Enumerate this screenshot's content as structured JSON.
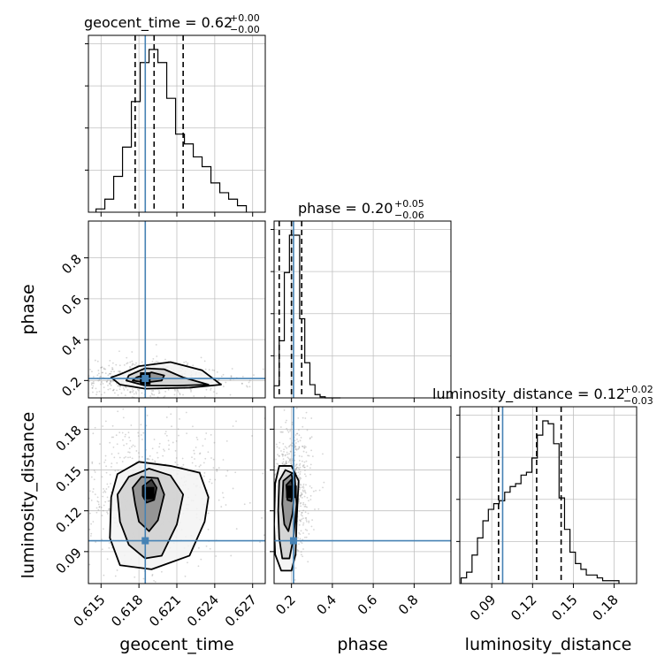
{
  "colors": {
    "truth": "#4682b4",
    "hist": "#000000",
    "grid": "#c0c0c0",
    "quantile": "#000000"
  },
  "chart_data": {
    "type": "corner",
    "parameters": [
      "geocent_time",
      "phase",
      "luminosity_distance"
    ],
    "truths": {
      "geocent_time": 0.6185,
      "phase": 0.21,
      "luminosity_distance": 0.098
    },
    "ranges": {
      "geocent_time": [
        0.614,
        0.628
      ],
      "phase": [
        0.115,
        0.98
      ],
      "luminosity_distance": [
        0.0665,
        0.1965
      ]
    },
    "ticks": {
      "geocent_time": {
        "values": [
          0.615,
          0.618,
          0.621,
          0.624,
          0.627
        ],
        "labels": [
          "0.615",
          "0.618",
          "0.621",
          "0.624",
          "0.627"
        ]
      },
      "phase": {
        "values": [
          0.2,
          0.4,
          0.6,
          0.8
        ],
        "labels": [
          "0.2",
          "0.4",
          "0.6",
          "0.8"
        ]
      },
      "luminosity_distance": {
        "values": [
          0.09,
          0.12,
          0.15,
          0.18
        ],
        "labels": [
          "0.09",
          "0.12",
          "0.15",
          "0.18"
        ]
      }
    },
    "titles": [
      {
        "param": "geocent_time",
        "text": "geocent_time = 0.62",
        "sup": "+0.00",
        "sub": "−0.00"
      },
      {
        "param": "phase",
        "text": "phase = 0.20",
        "sup": "+0.05",
        "sub": "−0.06"
      },
      {
        "param": "luminosity_distance",
        "text": "luminosity_distance = 0.12",
        "sup": "+0.02",
        "sub": "−0.03"
      }
    ],
    "axis_labels": {
      "x": [
        "geocent_time",
        "phase",
        "luminosity_distance"
      ],
      "y": [
        "phase",
        "luminosity_distance"
      ]
    },
    "quantiles": {
      "geocent_time": [
        0.6177,
        0.6192,
        0.6215
      ],
      "phase": [
        0.14,
        0.2,
        0.25
      ],
      "luminosity_distance": [
        0.095,
        0.123,
        0.141
      ]
    },
    "histograms": {
      "geocent_time": {
        "edges": [
          0.6146,
          0.6153,
          0.616,
          0.6167,
          0.6174,
          0.6181,
          0.6188,
          0.6195,
          0.6202,
          0.6209,
          0.6216,
          0.6223,
          0.623,
          0.6237,
          0.6244,
          0.6251,
          0.6258,
          0.6265
        ],
        "counts": [
          1,
          4,
          11,
          20,
          34,
          46,
          50,
          46,
          35,
          24,
          21,
          17,
          14,
          9,
          6,
          4,
          2
        ]
      },
      "phase": {
        "edges": [
          0.115,
          0.14,
          0.165,
          0.19,
          0.215,
          0.24,
          0.265,
          0.29,
          0.315,
          0.34,
          0.365,
          0.39,
          0.415,
          0.44
        ],
        "counts": [
          11,
          52,
          114,
          148,
          148,
          72,
          32,
          12,
          3,
          1,
          0,
          0,
          0
        ]
      },
      "luminosity_distance": {
        "edges": [
          0.0675,
          0.0715,
          0.0755,
          0.0795,
          0.0835,
          0.0875,
          0.0915,
          0.0955,
          0.0995,
          0.1035,
          0.1075,
          0.1115,
          0.1155,
          0.1195,
          0.1235,
          0.1275,
          0.1315,
          0.1355,
          0.1395,
          0.1435,
          0.1475,
          0.1515,
          0.1555,
          0.1595,
          0.1635,
          0.1675,
          0.1715,
          0.1755,
          0.1795,
          0.1835
        ],
        "counts": [
          2,
          4,
          10,
          16,
          22,
          26,
          28,
          29,
          32,
          34,
          35,
          38,
          39,
          44,
          52,
          57,
          56,
          49,
          30,
          19,
          11,
          7,
          5,
          3,
          3,
          2,
          1,
          1,
          1
        ]
      }
    },
    "pairs": [
      {
        "x": "geocent_time",
        "y": "phase",
        "peak": [
          0.6185,
          0.21
        ],
        "contours": [
          [
            [
              0.6165,
              0.23
            ],
            [
              0.618,
              0.27
            ],
            [
              0.6205,
              0.29
            ],
            [
              0.623,
              0.25
            ],
            [
              0.6245,
              0.18
            ],
            [
              0.622,
              0.165
            ],
            [
              0.6185,
              0.16
            ],
            [
              0.6165,
              0.18
            ],
            [
              0.6158,
              0.215
            ]
          ],
          [
            [
              0.6172,
              0.225
            ],
            [
              0.6185,
              0.26
            ],
            [
              0.62,
              0.255
            ],
            [
              0.6215,
              0.215
            ],
            [
              0.6235,
              0.18
            ],
            [
              0.621,
              0.175
            ],
            [
              0.6185,
              0.175
            ],
            [
              0.617,
              0.2
            ]
          ],
          [
            [
              0.6178,
              0.215
            ],
            [
              0.619,
              0.24
            ],
            [
              0.62,
              0.225
            ],
            [
              0.6198,
              0.2
            ],
            [
              0.6185,
              0.19
            ],
            [
              0.6175,
              0.2
            ]
          ]
        ]
      },
      {
        "x": "geocent_time",
        "y": "luminosity_distance",
        "peak": [
          0.6188,
          0.133
        ],
        "contours": [
          [
            [
              0.6158,
              0.13
            ],
            [
              0.6163,
              0.147
            ],
            [
              0.618,
              0.156
            ],
            [
              0.6205,
              0.153
            ],
            [
              0.6228,
              0.148
            ],
            [
              0.6235,
              0.13
            ],
            [
              0.6232,
              0.112
            ],
            [
              0.622,
              0.087
            ],
            [
              0.619,
              0.077
            ],
            [
              0.6165,
              0.08
            ],
            [
              0.6157,
              0.1
            ]
          ],
          [
            [
              0.6163,
              0.132
            ],
            [
              0.6172,
              0.145
            ],
            [
              0.6188,
              0.151
            ],
            [
              0.6205,
              0.146
            ],
            [
              0.6215,
              0.132
            ],
            [
              0.621,
              0.11
            ],
            [
              0.6198,
              0.087
            ],
            [
              0.6185,
              0.085
            ],
            [
              0.6172,
              0.095
            ],
            [
              0.6165,
              0.112
            ]
          ],
          [
            [
              0.6175,
              0.137
            ],
            [
              0.6182,
              0.145
            ],
            [
              0.6195,
              0.144
            ],
            [
              0.62,
              0.132
            ],
            [
              0.6195,
              0.113
            ],
            [
              0.6188,
              0.105
            ],
            [
              0.618,
              0.112
            ],
            [
              0.6177,
              0.125
            ]
          ],
          [
            [
              0.6183,
              0.138
            ],
            [
              0.619,
              0.143
            ],
            [
              0.6194,
              0.137
            ],
            [
              0.6192,
              0.128
            ],
            [
              0.6186,
              0.126
            ],
            [
              0.6183,
              0.131
            ]
          ]
        ]
      },
      {
        "x": "phase",
        "y": "luminosity_distance",
        "peak": [
          0.2,
          0.134
        ],
        "contours": [
          [
            [
              0.12,
              0.14
            ],
            [
              0.14,
              0.153
            ],
            [
              0.2,
              0.153
            ],
            [
              0.235,
              0.142
            ],
            [
              0.225,
              0.112
            ],
            [
              0.22,
              0.088
            ],
            [
              0.2,
              0.076
            ],
            [
              0.15,
              0.076
            ],
            [
              0.12,
              0.088
            ],
            [
              0.115,
              0.11
            ]
          ],
          [
            [
              0.14,
              0.142
            ],
            [
              0.17,
              0.15
            ],
            [
              0.215,
              0.147
            ],
            [
              0.225,
              0.125
            ],
            [
              0.21,
              0.1
            ],
            [
              0.19,
              0.085
            ],
            [
              0.155,
              0.085
            ],
            [
              0.14,
              0.1
            ],
            [
              0.135,
              0.12
            ]
          ],
          [
            [
              0.16,
              0.142
            ],
            [
              0.2,
              0.147
            ],
            [
              0.215,
              0.135
            ],
            [
              0.205,
              0.118
            ],
            [
              0.185,
              0.105
            ],
            [
              0.165,
              0.11
            ],
            [
              0.155,
              0.125
            ]
          ],
          [
            [
              0.175,
              0.139
            ],
            [
              0.2,
              0.143
            ],
            [
              0.208,
              0.135
            ],
            [
              0.2,
              0.127
            ],
            [
              0.18,
              0.128
            ]
          ]
        ]
      }
    ]
  }
}
